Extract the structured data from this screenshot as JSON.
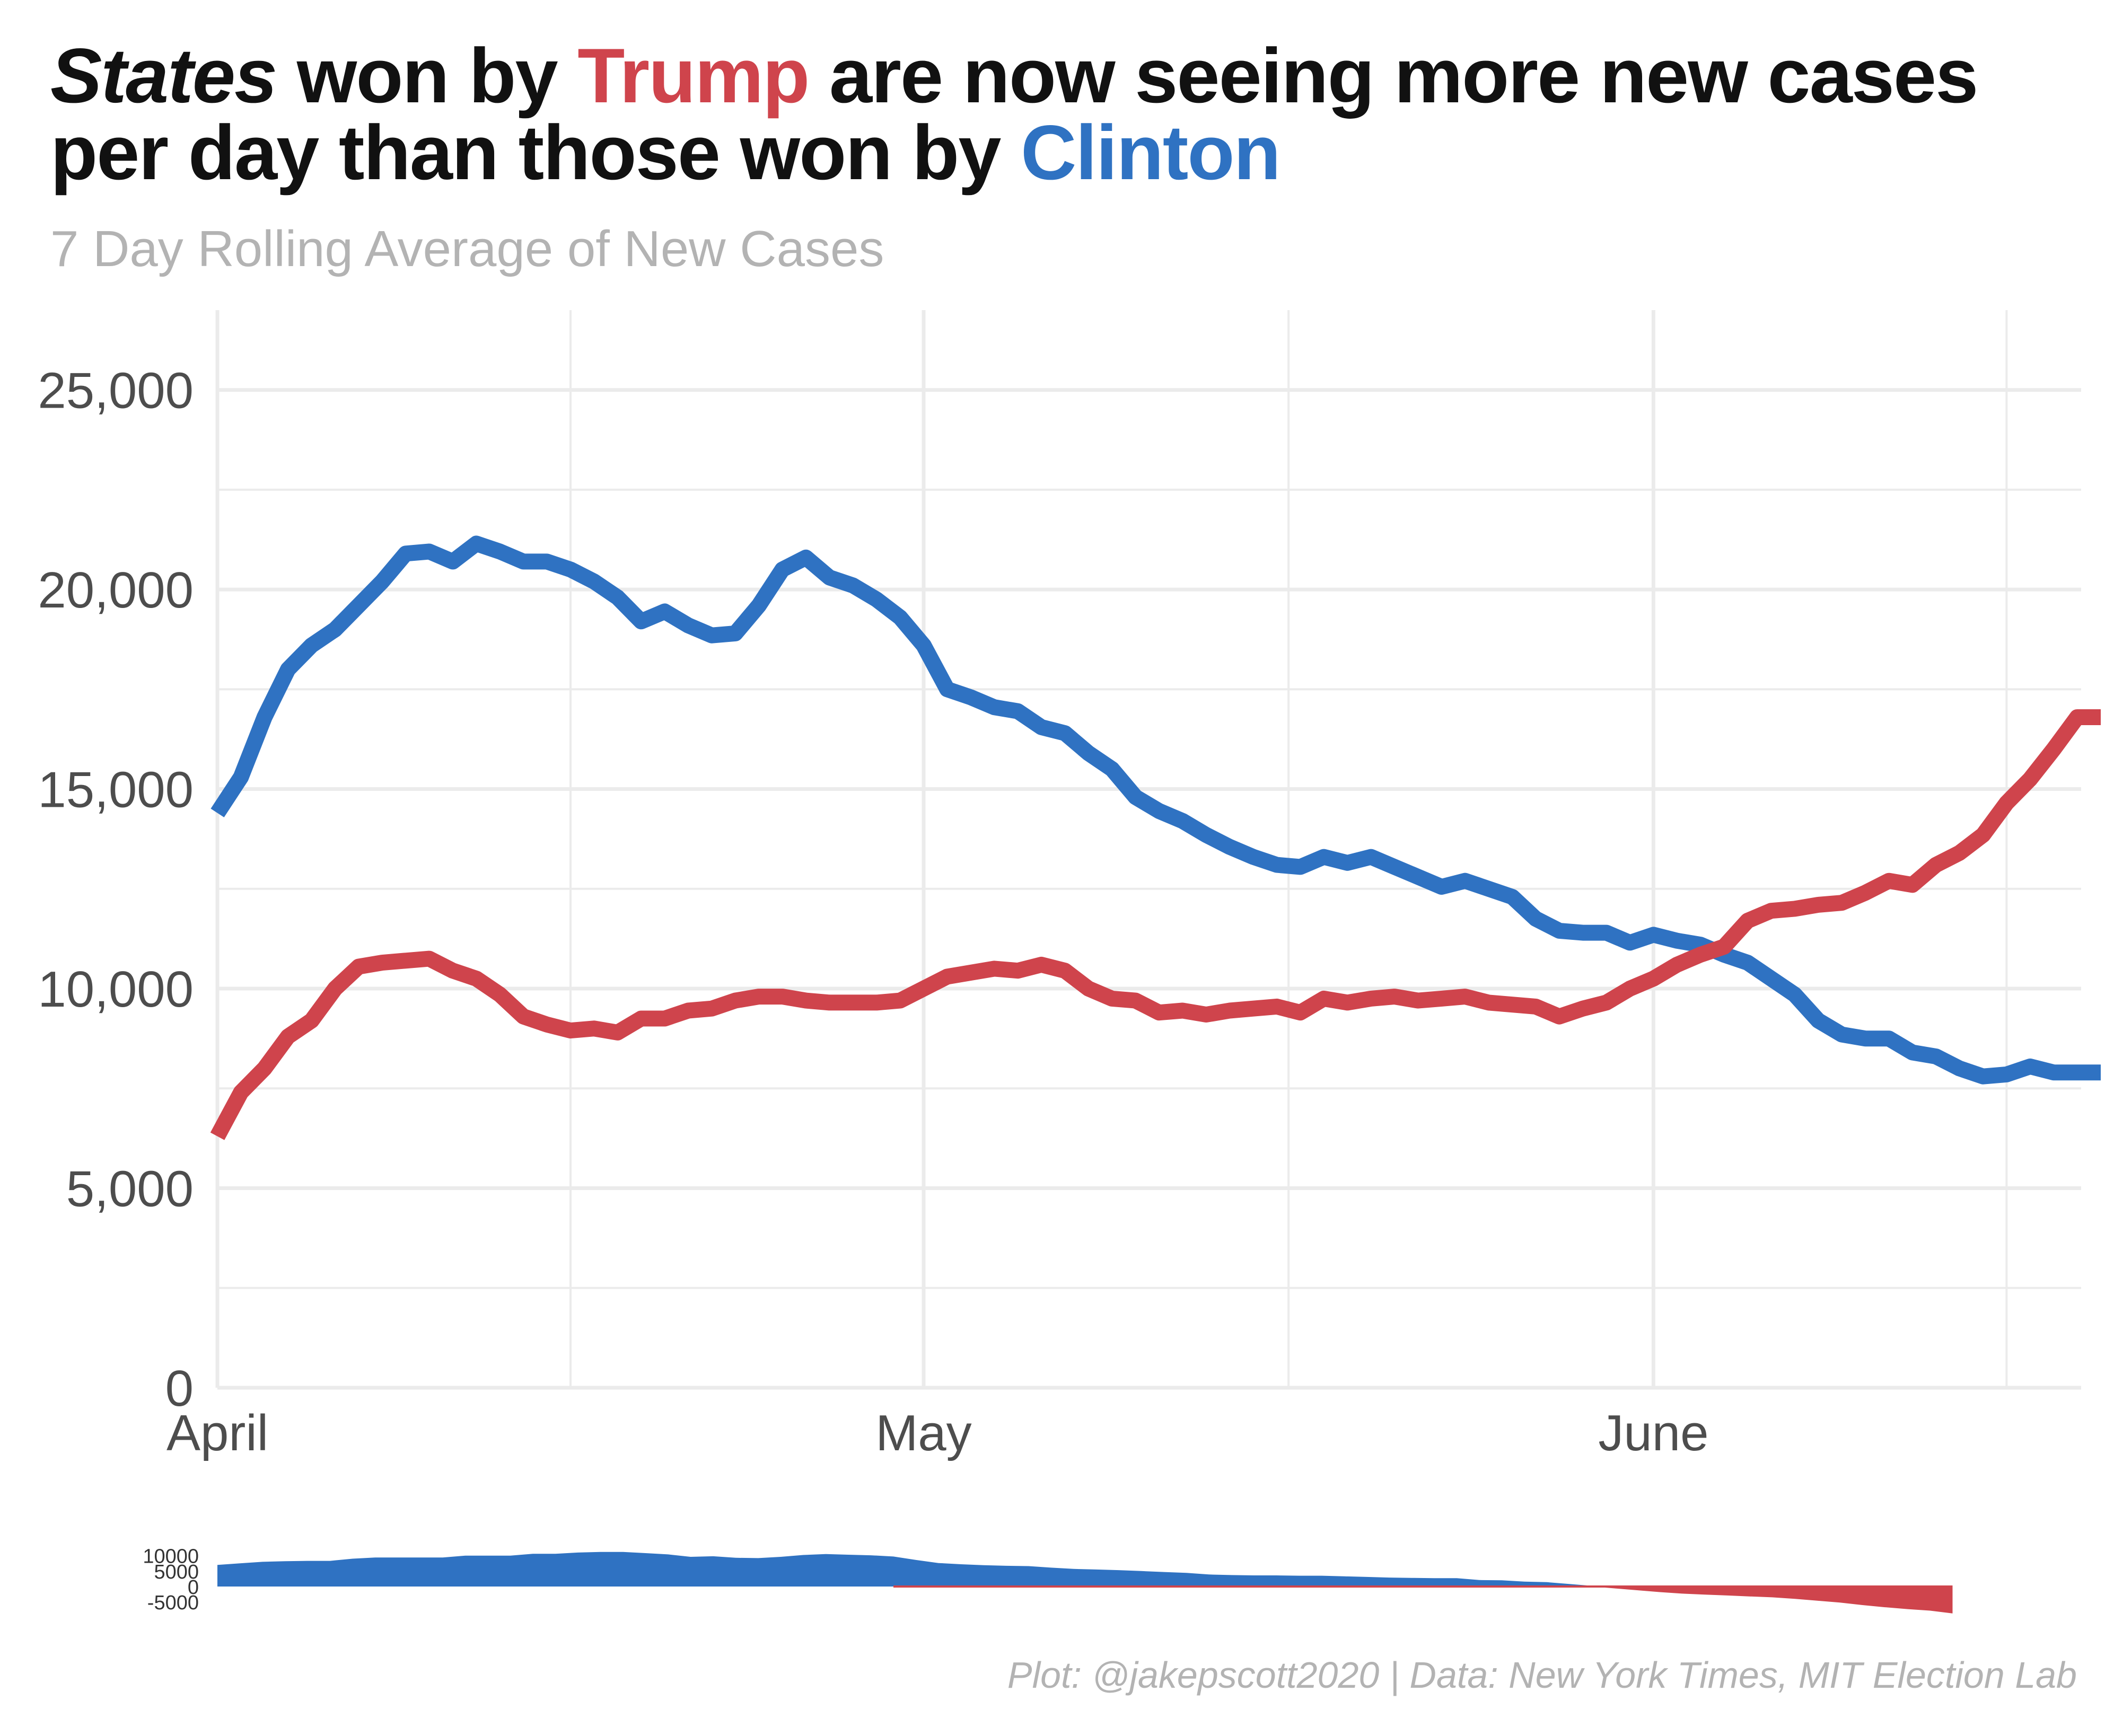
{
  "title": {
    "part1_italic": "States",
    "part2": " won by ",
    "trump": "Trump",
    "part3": " are now seeing more new cases",
    "line2": "per day than those won by ",
    "clinton": "Clinton"
  },
  "subtitle": "7 Day Rolling Average of New Cases",
  "caption": "Plot: @jakepscott2020 | Data: New York Times, MIT Election Lab",
  "colors": {
    "trump": "#cf444c",
    "clinton": "#2f72c2",
    "grid": "#ebebeb"
  },
  "chart_data": [
    {
      "type": "line",
      "title": "States won by Trump are now seeing more new cases per day than those won by Clinton",
      "subtitle": "7 Day Rolling Average of New Cases",
      "x_start": "2020-04-01",
      "x_end": "2020-06-20",
      "x_ticks": [
        {
          "label": "April",
          "date": "2020-04-01"
        },
        {
          "label": "May",
          "date": "2020-05-01"
        },
        {
          "label": "June",
          "date": "2020-06-01"
        }
      ],
      "y_ticks": [
        "0",
        "5,000",
        "10,000",
        "15,000",
        "20,000",
        "25,000"
      ],
      "ylim": [
        0,
        27000
      ],
      "grid": true,
      "series": [
        {
          "name": "Clinton",
          "color": "#2f72c2",
          "x": [
            "2020-04-01",
            "2020-04-02",
            "2020-04-03",
            "2020-04-04",
            "2020-04-05",
            "2020-04-06",
            "2020-04-07",
            "2020-04-08",
            "2020-04-09",
            "2020-04-10",
            "2020-04-11",
            "2020-04-12",
            "2020-04-13",
            "2020-04-14",
            "2020-04-15",
            "2020-04-16",
            "2020-04-17",
            "2020-04-18",
            "2020-04-19",
            "2020-04-20",
            "2020-04-21",
            "2020-04-22",
            "2020-04-23",
            "2020-04-24",
            "2020-04-25",
            "2020-04-26",
            "2020-04-27",
            "2020-04-28",
            "2020-04-29",
            "2020-04-30",
            "2020-05-01",
            "2020-05-02",
            "2020-05-03",
            "2020-05-04",
            "2020-05-05",
            "2020-05-06",
            "2020-05-07",
            "2020-05-08",
            "2020-05-09",
            "2020-05-10",
            "2020-05-11",
            "2020-05-12",
            "2020-05-13",
            "2020-05-14",
            "2020-05-15",
            "2020-05-16",
            "2020-05-17",
            "2020-05-18",
            "2020-05-19",
            "2020-05-20",
            "2020-05-21",
            "2020-05-22",
            "2020-05-23",
            "2020-05-24",
            "2020-05-25",
            "2020-05-26",
            "2020-05-27",
            "2020-05-28",
            "2020-05-29",
            "2020-05-30",
            "2020-05-31",
            "2020-06-01",
            "2020-06-02",
            "2020-06-03",
            "2020-06-04",
            "2020-06-05",
            "2020-06-06",
            "2020-06-07",
            "2020-06-08",
            "2020-06-09",
            "2020-06-10",
            "2020-06-11",
            "2020-06-12",
            "2020-06-13",
            "2020-06-14",
            "2020-06-15",
            "2020-06-16",
            "2020-06-17",
            "2020-06-18",
            "2020-06-19",
            "2020-06-20"
          ],
          "values": [
            14400,
            15300,
            16800,
            18000,
            18600,
            19000,
            19600,
            20200,
            20900,
            20950,
            20700,
            21150,
            20950,
            20700,
            20700,
            20500,
            20200,
            19800,
            19200,
            19450,
            19100,
            18850,
            18900,
            19600,
            20500,
            20800,
            20300,
            20100,
            19750,
            19300,
            18600,
            17500,
            17300,
            17050,
            16950,
            16550,
            16400,
            15900,
            15500,
            14800,
            14450,
            14200,
            13850,
            13550,
            13300,
            13100,
            13050,
            13300,
            13150,
            13300,
            13050,
            12800,
            12550,
            12700,
            12500,
            12300,
            11750,
            11450,
            11400,
            11400,
            11150,
            11350,
            11200,
            11100,
            10850,
            10650,
            10250,
            9850,
            9200,
            8850,
            8750,
            8750,
            8400,
            8300,
            8000,
            7800,
            7850,
            8050,
            7900,
            7900,
            7900
          ]
        },
        {
          "name": "Trump",
          "color": "#cf444c",
          "x": [
            "2020-04-01",
            "2020-04-02",
            "2020-04-03",
            "2020-04-04",
            "2020-04-05",
            "2020-04-06",
            "2020-04-07",
            "2020-04-08",
            "2020-04-09",
            "2020-04-10",
            "2020-04-11",
            "2020-04-12",
            "2020-04-13",
            "2020-04-14",
            "2020-04-15",
            "2020-04-16",
            "2020-04-17",
            "2020-04-18",
            "2020-04-19",
            "2020-04-20",
            "2020-04-21",
            "2020-04-22",
            "2020-04-23",
            "2020-04-24",
            "2020-04-25",
            "2020-04-26",
            "2020-04-27",
            "2020-04-28",
            "2020-04-29",
            "2020-04-30",
            "2020-05-01",
            "2020-05-02",
            "2020-05-03",
            "2020-05-04",
            "2020-05-05",
            "2020-05-06",
            "2020-05-07",
            "2020-05-08",
            "2020-05-09",
            "2020-05-10",
            "2020-05-11",
            "2020-05-12",
            "2020-05-13",
            "2020-05-14",
            "2020-05-15",
            "2020-05-16",
            "2020-05-17",
            "2020-05-18",
            "2020-05-19",
            "2020-05-20",
            "2020-05-21",
            "2020-05-22",
            "2020-05-23",
            "2020-05-24",
            "2020-05-25",
            "2020-05-26",
            "2020-05-27",
            "2020-05-28",
            "2020-05-29",
            "2020-05-30",
            "2020-05-31",
            "2020-06-01",
            "2020-06-02",
            "2020-06-03",
            "2020-06-04",
            "2020-06-05",
            "2020-06-06",
            "2020-06-07",
            "2020-06-08",
            "2020-06-09",
            "2020-06-10",
            "2020-06-11",
            "2020-06-12",
            "2020-06-13",
            "2020-06-14",
            "2020-06-15",
            "2020-06-16",
            "2020-06-17",
            "2020-06-18",
            "2020-06-19",
            "2020-06-20"
          ],
          "values": [
            6300,
            7400,
            8000,
            8800,
            9200,
            10000,
            10550,
            10650,
            10700,
            10750,
            10450,
            10250,
            9850,
            9300,
            9100,
            8950,
            9000,
            8900,
            9250,
            9250,
            9450,
            9500,
            9700,
            9800,
            9800,
            9700,
            9650,
            9650,
            9650,
            9700,
            10000,
            10300,
            10400,
            10500,
            10450,
            10600,
            10450,
            10000,
            9750,
            9700,
            9400,
            9450,
            9350,
            9450,
            9500,
            9550,
            9400,
            9750,
            9650,
            9750,
            9800,
            9700,
            9750,
            9800,
            9650,
            9600,
            9550,
            9300,
            9500,
            9650,
            10000,
            10250,
            10600,
            10850,
            11050,
            11700,
            11950,
            12000,
            12100,
            12150,
            12400,
            12700,
            12600,
            13100,
            13400,
            13850,
            14650,
            15250,
            16000,
            16800,
            16800
          ]
        }
      ]
    },
    {
      "type": "area",
      "description_of_values": "difference between Clinton and Trump 7 day averages",
      "x_start": "2020-04-01",
      "x_end": "2020-06-17",
      "y_ticks": [
        "10000",
        "5000",
        "0",
        "-5000"
      ],
      "ylim": [
        -8000,
        12000
      ],
      "positive_color": "#2f72c2",
      "negative_color": "#cf444c",
      "values": [
        7000,
        7500,
        8000,
        8200,
        8300,
        8300,
        9000,
        9400,
        9400,
        9400,
        9400,
        10000,
        10000,
        10000,
        10600,
        10600,
        11000,
        11200,
        11200,
        10800,
        10400,
        9600,
        9800,
        9300,
        9200,
        9600,
        10200,
        10500,
        10300,
        10100,
        9700,
        8600,
        7600,
        7200,
        6900,
        6700,
        6600,
        6100,
        5700,
        5500,
        5300,
        5000,
        4700,
        4400,
        3900,
        3700,
        3600,
        3600,
        3500,
        3500,
        3300,
        3100,
        2900,
        2800,
        2700,
        2700,
        2100,
        2000,
        1600,
        1400,
        800,
        200,
        -600,
        -1200,
        -1800,
        -2300,
        -2600,
        -2900,
        -3200,
        -3500,
        -4000,
        -4600,
        -5200,
        -6000,
        -6700,
        -7300,
        -7800,
        -8700
      ]
    }
  ]
}
